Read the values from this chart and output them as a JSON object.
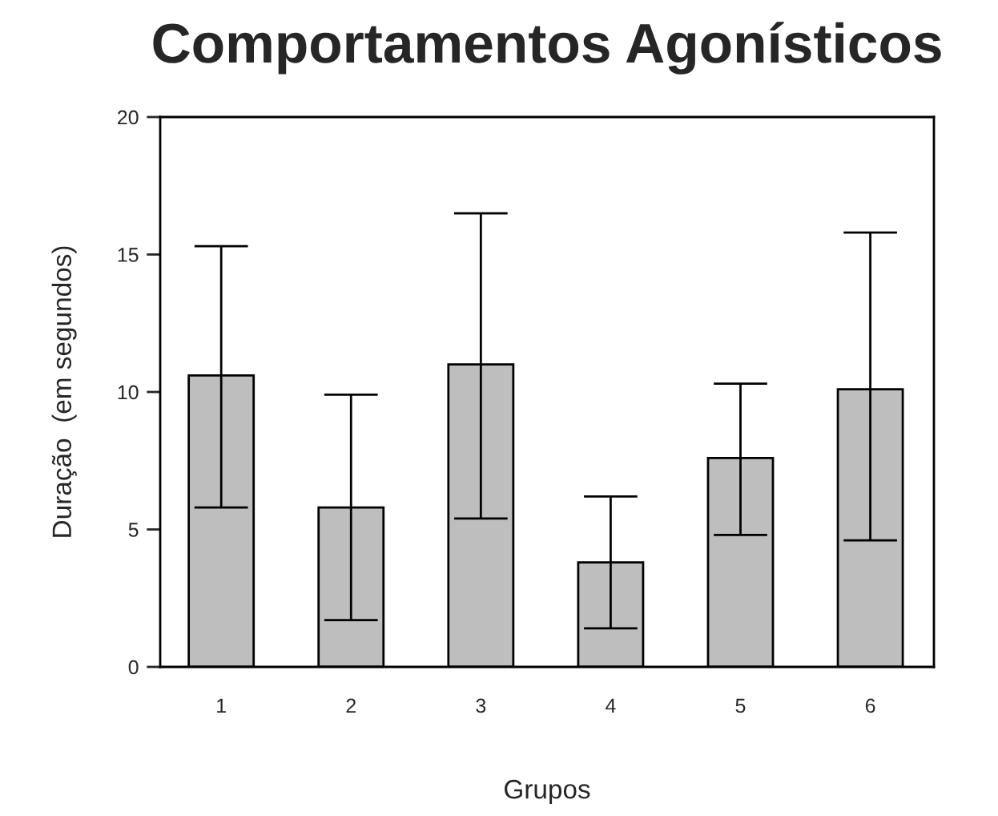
{
  "chart_data": {
    "type": "bar",
    "title": "Comportamentos Agonísticos",
    "xlabel": "Grupos",
    "ylabel": "Duração  (em segundos)",
    "categories": [
      "1",
      "2",
      "3",
      "4",
      "5",
      "6"
    ],
    "values": [
      10.6,
      5.8,
      11.0,
      3.8,
      7.6,
      10.1
    ],
    "errors": [
      [
        5.8,
        15.3
      ],
      [
        1.7,
        9.9
      ],
      [
        5.4,
        16.5
      ],
      [
        1.4,
        6.2
      ],
      [
        4.8,
        10.3
      ],
      [
        4.6,
        15.8
      ]
    ],
    "color": "#bebebe",
    "ylim": [
      0,
      20
    ],
    "yticks": [
      0,
      5,
      10,
      15,
      20
    ],
    "grid": false,
    "legend": false
  }
}
